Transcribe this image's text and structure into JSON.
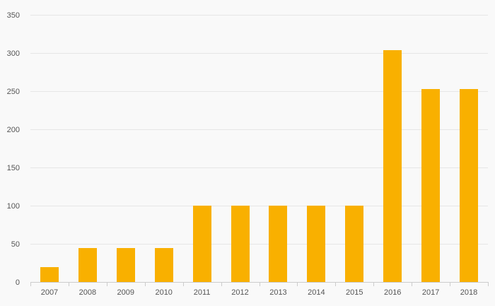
{
  "colors": {
    "background": "#f9f9f9",
    "bar": "#f9b000",
    "grid": "#e6e6e6",
    "axis": "#cccccc",
    "tick_text": "#555555"
  },
  "chart_data": {
    "type": "bar",
    "title": "",
    "xlabel": "",
    "ylabel": "",
    "categories": [
      "2007",
      "2008",
      "2009",
      "2010",
      "2011",
      "2012",
      "2013",
      "2014",
      "2015",
      "2016",
      "2017",
      "2018"
    ],
    "values": [
      19,
      44,
      44,
      44,
      100,
      100,
      100,
      100,
      100,
      304,
      253,
      253
    ],
    "ylim": [
      0,
      350
    ],
    "yticks": [
      0,
      50,
      100,
      150,
      200,
      250,
      300,
      350
    ],
    "grid": true,
    "legend": "none"
  }
}
